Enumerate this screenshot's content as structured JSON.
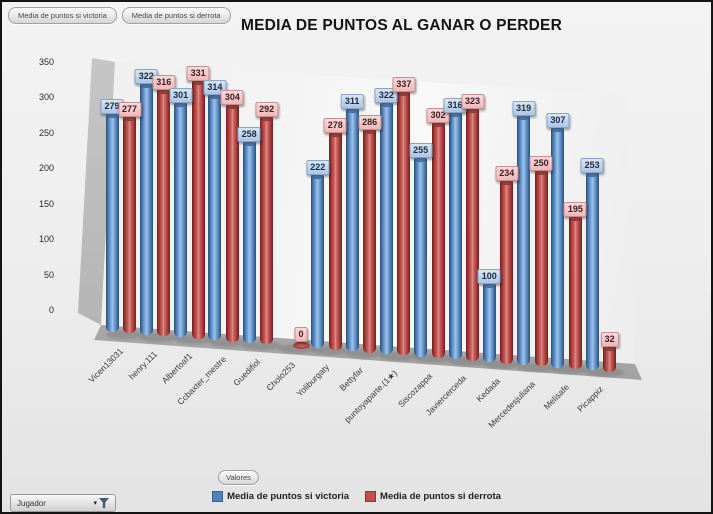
{
  "title": "MEDIA DE PUNTOS AL GANAR O PERDER",
  "pivot_buttons": {
    "series_field_victoria": "Media de puntos si victoria",
    "series_field_derrota": "Media de puntos si derrota",
    "values_label": "Valores",
    "category_field": "Jugador"
  },
  "colors": {
    "victoria_bar": "#4f81bd",
    "derrota_bar": "#c0504d",
    "victoria_label_chip": "#b8cfe8",
    "derrota_label_chip": "#f6c3c6"
  },
  "chart_data": {
    "type": "bar",
    "style": "3d-cylinder",
    "title": "MEDIA DE PUNTOS AL GANAR O PERDER",
    "categories": [
      "Vicen13031",
      "henry.111",
      "Albertoaf1",
      "Ccbaxter_mestre",
      "Guedifiol",
      "Cholo253",
      "Yoliburgaty",
      "Bettyfar",
      "puntoyaparte.(1★)",
      "Siscozappa",
      "Javiercerceda",
      "Kedada",
      "Mercedesjuliana",
      "Melisafe",
      "Picappiz"
    ],
    "series": [
      {
        "name": "Media de puntos si victoria",
        "color": "#4f81bd",
        "values": [
          279,
          322,
          301,
          314,
          258,
          null,
          222,
          311,
          322,
          255,
          316,
          100,
          319,
          307,
          253
        ],
        "occluded_value_indices": [
          0,
          1,
          3,
          10
        ]
      },
      {
        "name": "Media de puntos si derrota",
        "color": "#c0504d",
        "values": [
          277,
          316,
          331,
          304,
          292,
          0,
          278,
          286,
          337,
          302,
          323,
          234,
          250,
          195,
          32
        ]
      }
    ],
    "ylim": [
      0,
      350
    ],
    "yticks": [
      0,
      50,
      100,
      150,
      200,
      250,
      300,
      350
    ],
    "grid": false,
    "legend_position": "bottom",
    "data_labels": true
  }
}
